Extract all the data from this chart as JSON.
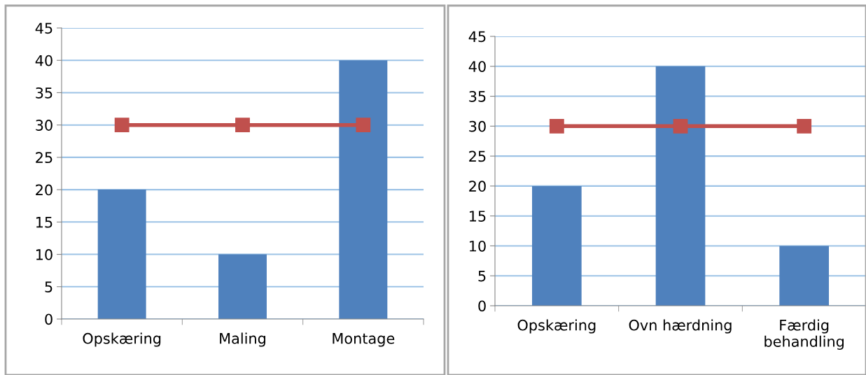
{
  "chart_data": [
    {
      "type": "bar",
      "categories": [
        "Opskæring",
        "Maling",
        "Montage"
      ],
      "series": [
        {
          "color": "#4f81bd",
          "values": [
            20,
            10,
            40
          ]
        },
        {
          "type": "line",
          "color": "#c0504d",
          "values": [
            30,
            30,
            30
          ]
        }
      ],
      "ylim": [
        0,
        45
      ],
      "yticks": [
        0,
        5,
        10,
        15,
        20,
        25,
        30,
        35,
        40,
        45
      ],
      "grid": "y",
      "marker": "square",
      "line_style": "solid"
    },
    {
      "type": "bar",
      "categories": [
        "Opskæring",
        "Ovn hærdning",
        "Færdig\nbehandling"
      ],
      "series": [
        {
          "color": "#4f81bd",
          "values": [
            20,
            40,
            10
          ]
        },
        {
          "type": "line",
          "color": "#c0504d",
          "values": [
            30,
            30,
            30
          ]
        }
      ],
      "ylim": [
        0,
        45
      ],
      "yticks": [
        0,
        5,
        10,
        15,
        20,
        25,
        30,
        35,
        40,
        45
      ],
      "grid": "y",
      "marker": "square",
      "line_style": "solid"
    }
  ]
}
